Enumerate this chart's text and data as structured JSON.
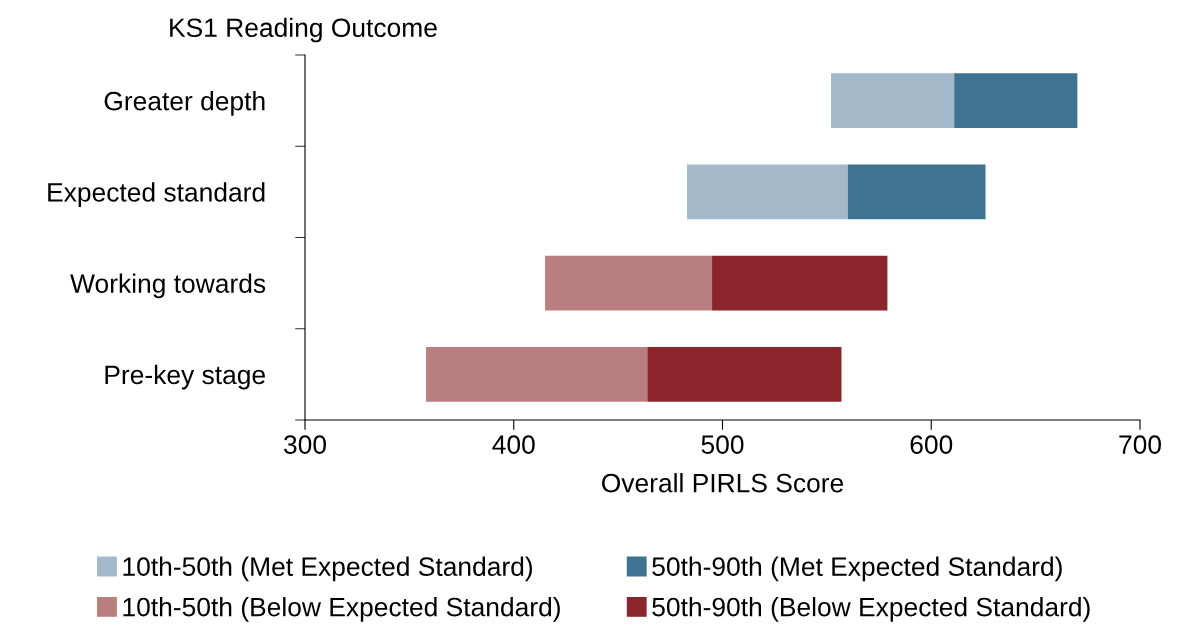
{
  "chart_data": {
    "type": "bar",
    "orientation": "horizontal",
    "ylabel": "KS1 Reading Outcome",
    "xlabel": "Overall PIRLS Score",
    "categories": [
      "Greater depth",
      "Expected standard",
      "Working towards",
      "Pre-key stage"
    ],
    "series": [
      {
        "name": "10th-50th (Met Expected Standard)",
        "color": "#a3b9c9",
        "base": [
          552,
          483,
          null,
          null
        ],
        "values": [
          59,
          77,
          null,
          null
        ]
      },
      {
        "name": "50th-90th (Met Expected Standard)",
        "color": "#3e7392",
        "base": [
          611,
          560,
          null,
          null
        ],
        "values": [
          59,
          66,
          null,
          null
        ]
      },
      {
        "name": "10th-50th (Below Expected Standard)",
        "color": "#b97e7e",
        "base": [
          null,
          null,
          415,
          358
        ],
        "values": [
          null,
          null,
          80,
          106
        ]
      },
      {
        "name": "50th-90th (Below Expected Standard)",
        "color": "#8b252b",
        "base": [
          null,
          null,
          495,
          464
        ],
        "values": [
          null,
          null,
          84,
          93
        ]
      }
    ],
    "xlim": [
      300,
      700
    ],
    "xticks": [
      300,
      400,
      500,
      600,
      700
    ],
    "grid": false,
    "legend": "bottom"
  }
}
